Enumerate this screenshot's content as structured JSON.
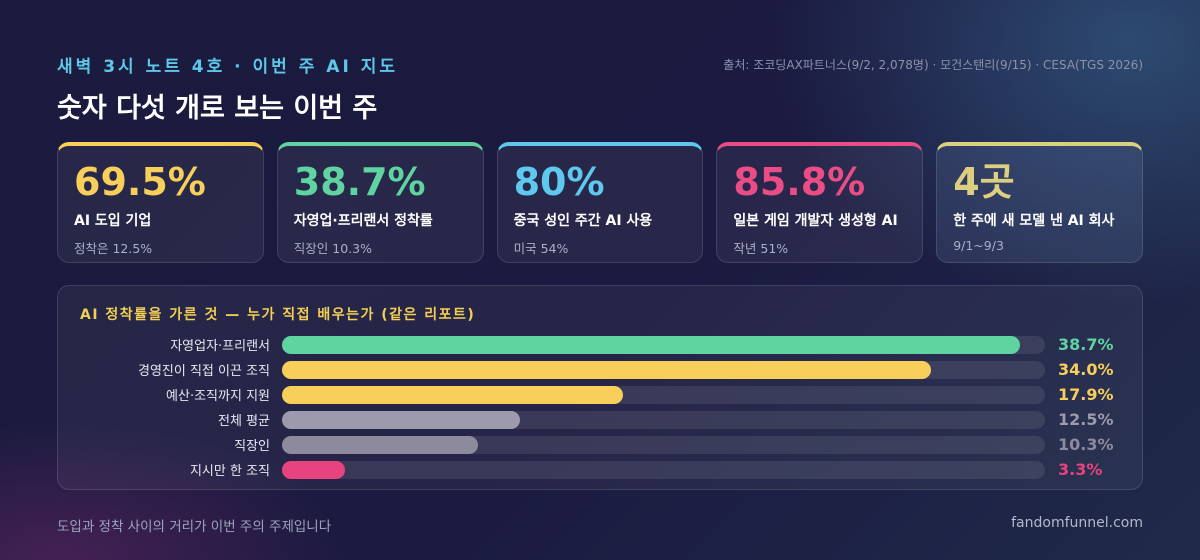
{
  "header": {
    "kicker": "새벽 3시 노트 4호 · 이번 주 AI 지도",
    "source": "출처: 조코딩AX파트너스(9/2, 2,078명) · 모건스탠리(9/15) · CESA(TGS 2026)",
    "title": "숫자 다섯 개로 보는 이번 주"
  },
  "cards": [
    {
      "value": "69.5%",
      "label": "AI 도입 기업",
      "sub": "정착은 12.5%",
      "color": "#f8cf5a"
    },
    {
      "value": "38.7%",
      "label": "자영업·프리랜서 정착률",
      "sub": "직장인 10.3%",
      "color": "#5fd3a0"
    },
    {
      "value": "80%",
      "label": "중국 성인 주간 AI 사용",
      "sub": "미국 54%",
      "color": "#5ec8ef"
    },
    {
      "value": "85.8%",
      "label": "일본 게임 개발자 생성형 AI",
      "sub": "작년 51%",
      "color": "#ea4c85"
    },
    {
      "value": "4곳",
      "label": "한 주에 새 모델 낸 AI 회사",
      "sub": "9/1~9/3",
      "color": "#dccf80"
    }
  ],
  "chart_data": {
    "type": "bar",
    "orientation": "horizontal",
    "title": "AI 정착률을 가른 것 — 누가 직접 배우는가 (같은 리포트)",
    "categories": [
      "자영업자·프리랜서",
      "경영진이 직접 이끈 조직",
      "예산·조직까지 지원",
      "전체 평균",
      "직장인",
      "지시만 한 조직"
    ],
    "values": [
      38.7,
      34.0,
      17.9,
      12.5,
      10.3,
      3.3
    ],
    "value_labels": [
      "38.7%",
      "34.0%",
      "17.9%",
      "12.5%",
      "10.3%",
      "3.3%"
    ],
    "colors": [
      "#5fd3a0",
      "#f8cf5a",
      "#f8cf5a",
      "#9d9aae",
      "#8c8a9c",
      "#e8437e"
    ],
    "xlim": [
      0,
      40
    ],
    "grid": false
  },
  "footer": {
    "note": "도입과 정착 사이의 거리가 이번 주의 주제입니다",
    "site": "fandomfunnel.com"
  }
}
